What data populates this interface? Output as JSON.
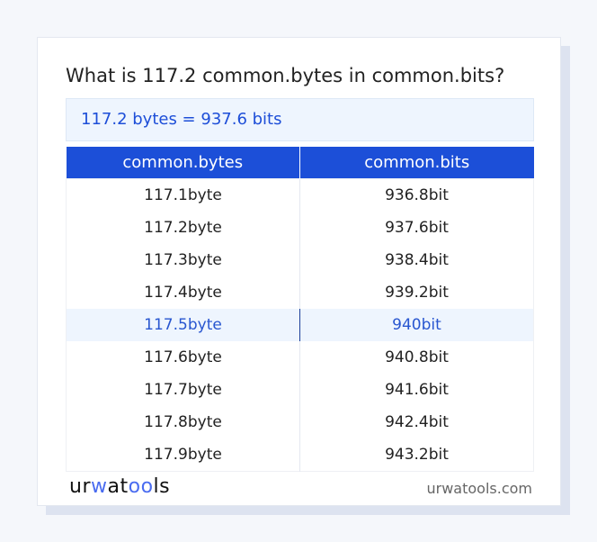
{
  "title": "What is 117.2 common.bytes in common.bits?",
  "result": "117.2 bytes = 937.6 bits",
  "table": {
    "headers": [
      "common.bytes",
      "common.bits"
    ],
    "rows": [
      [
        "117.1byte",
        "936.8bit"
      ],
      [
        "117.2byte",
        "937.6bit"
      ],
      [
        "117.3byte",
        "938.4bit"
      ],
      [
        "117.4byte",
        "939.2bit"
      ],
      [
        "117.5byte",
        "940bit"
      ],
      [
        "117.6byte",
        "940.8bit"
      ],
      [
        "117.7byte",
        "941.6bit"
      ],
      [
        "117.8byte",
        "942.4bit"
      ],
      [
        "117.9byte",
        "943.2bit"
      ]
    ],
    "highlighted_row": 4
  },
  "footer": {
    "logo": "urwatools",
    "site": "urwatools.com"
  },
  "colors": {
    "accent": "#1c4fd8",
    "highlight_bg": "#eef5fe"
  }
}
